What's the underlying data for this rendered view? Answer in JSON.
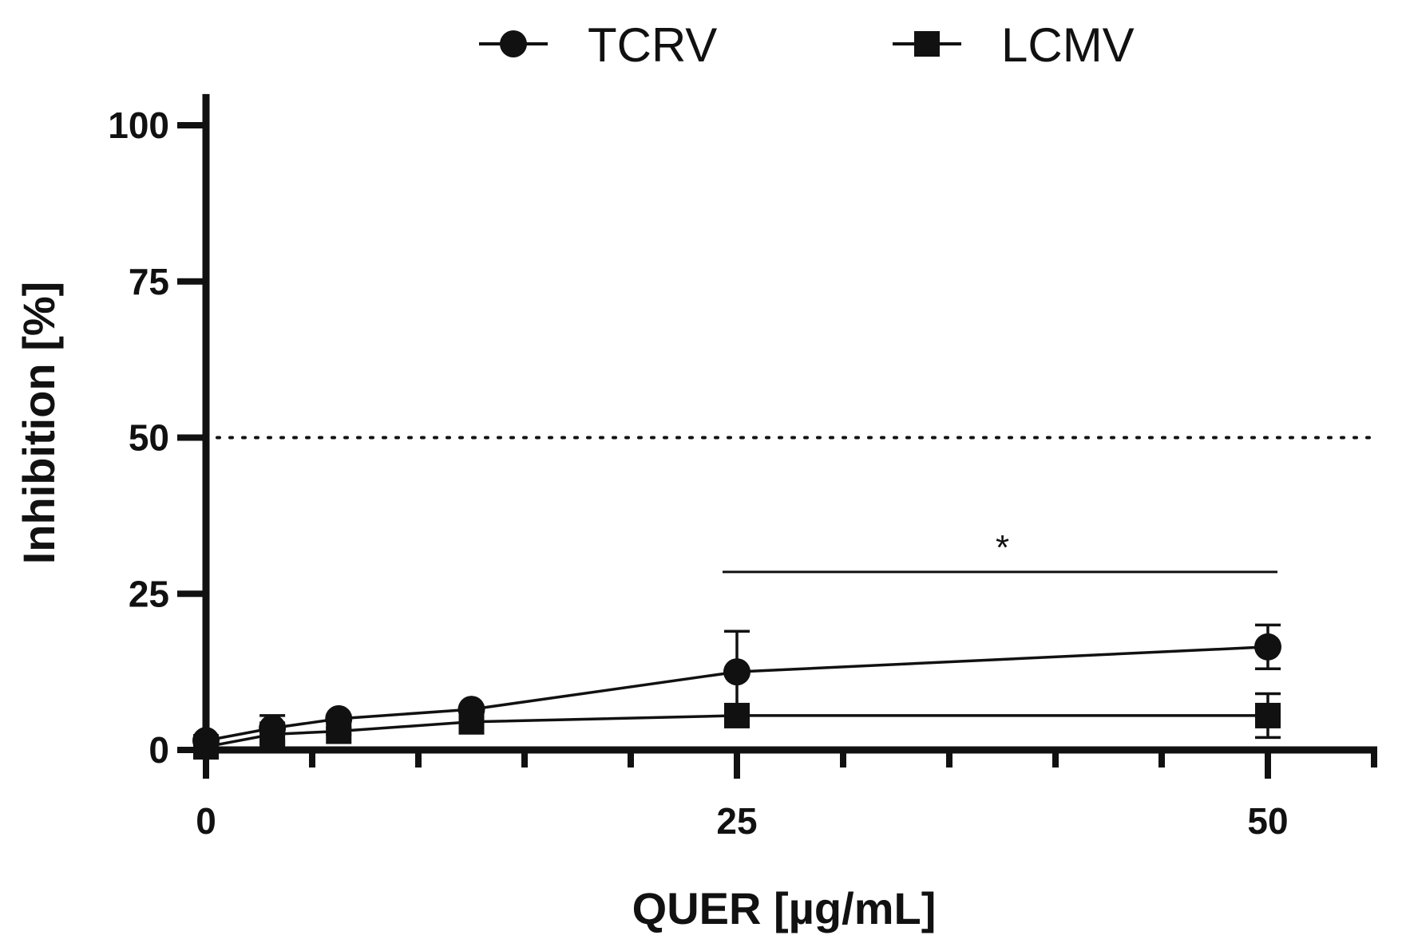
{
  "chart_data": {
    "type": "line",
    "title": "",
    "xlabel": "QUER [µg/mL]",
    "ylabel": "Inhibition [%]",
    "xlim": [
      0,
      55
    ],
    "ylim": [
      0,
      105
    ],
    "x_ticks": [
      0,
      25,
      50
    ],
    "x_minor_ticks": [
      5,
      10,
      15,
      20,
      30,
      35,
      40,
      45,
      55
    ],
    "y_ticks": [
      0,
      25,
      50,
      75,
      100
    ],
    "reference_line": {
      "y": 50,
      "style": "dotted"
    },
    "legend": {
      "placement": "top-center"
    },
    "series": [
      {
        "name": "TCRV",
        "marker": "circle",
        "x": [
          0,
          3.125,
          6.25,
          12.5,
          25,
          50
        ],
        "y": [
          1.5,
          3.5,
          5,
          6.5,
          12.5,
          16.5
        ],
        "error": [
          0,
          2,
          0.5,
          0.5,
          6.5,
          3.5
        ]
      },
      {
        "name": "LCMV",
        "marker": "square",
        "x": [
          0,
          3.125,
          6.25,
          12.5,
          25,
          50
        ],
        "y": [
          0.5,
          2.5,
          3,
          4.5,
          5.5,
          5.5
        ],
        "error": [
          0,
          1.5,
          0.5,
          0.5,
          1.5,
          3.5
        ]
      }
    ],
    "annotations": [
      {
        "text": "*",
        "x_from": 25,
        "x_to": 50,
        "y": 28.5
      }
    ]
  }
}
